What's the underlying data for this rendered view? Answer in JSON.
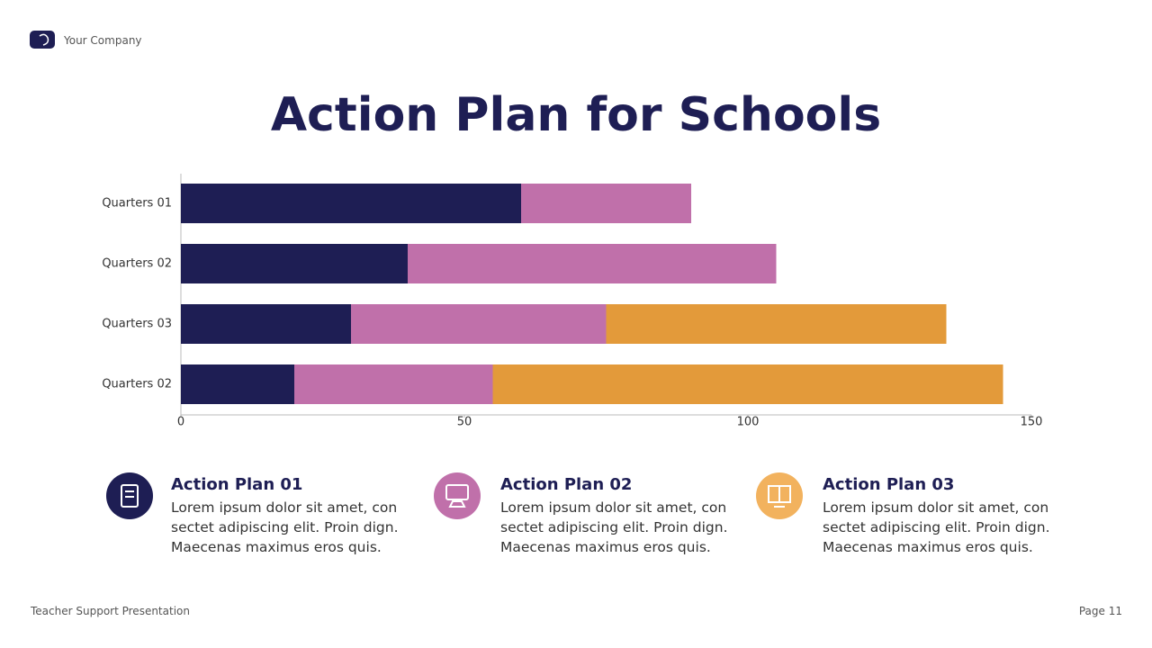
{
  "header": {
    "company": "Your Company",
    "title": "Action Plan for Schools"
  },
  "chart_data": {
    "type": "stacked-bar-horizontal",
    "categories": [
      "Quarters 01",
      "Quarters 02",
      "Quarters 03",
      "Quarters 02"
    ],
    "series": [
      {
        "color": "#1e1e54",
        "values": [
          60,
          40,
          30,
          20
        ]
      },
      {
        "color": "#c070aa",
        "values": [
          30,
          65,
          45,
          35
        ]
      },
      {
        "color": "#e39a3a",
        "values": [
          null,
          null,
          60,
          90
        ]
      }
    ],
    "xlim": [
      0,
      150
    ],
    "xticks": [
      0,
      50,
      100,
      150
    ],
    "grid": false
  },
  "plans": [
    {
      "title": "Action Plan 01",
      "text": "Lorem ipsum dolor sit amet, con sectet adipiscing elit. Proin dign. Maecenas maximus eros quis.",
      "color": "#1e1e54"
    },
    {
      "title": "Action Plan 02",
      "text": "Lorem ipsum dolor sit amet, con sectet adipiscing elit. Proin dign. Maecenas maximus eros quis.",
      "color": "#c070aa"
    },
    {
      "title": "Action Plan 03",
      "text": "Lorem ipsum dolor sit amet, con sectet adipiscing elit. Proin dign. Maecenas maximus eros quis.",
      "color": "#f2b25e"
    }
  ],
  "footer": {
    "left": "Teacher Support Presentation",
    "right": "Page 11"
  }
}
